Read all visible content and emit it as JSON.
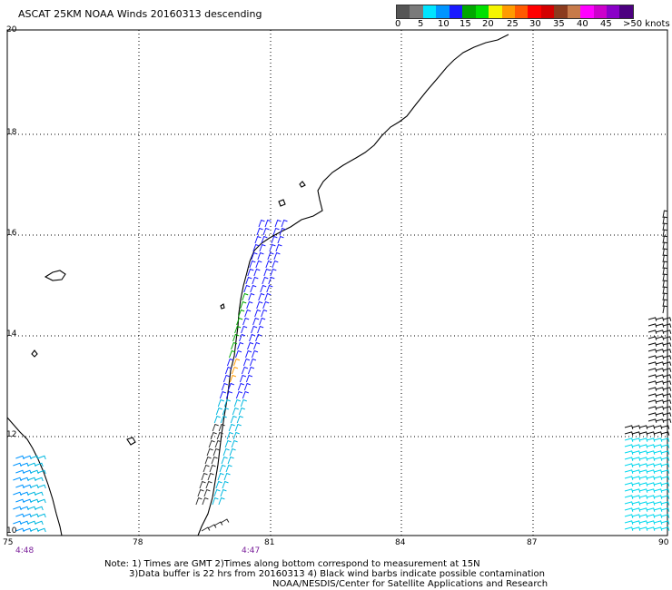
{
  "title": "ASCAT 25KM NOAA Winds 20160313 descending",
  "legend": {
    "labels": [
      "0",
      "5",
      "10",
      "15",
      "20",
      "25",
      "30",
      "35",
      "40",
      "45",
      ">50 knots"
    ],
    "colors": [
      "#555555",
      "#7a7a7a",
      "#00e5ff",
      "#0095ff",
      "#1a1aff",
      "#00a800",
      "#00e000",
      "#f4f400",
      "#ff9b00",
      "#ff5a00",
      "#ff0000",
      "#d40000",
      "#8b3b1e",
      "#c77a4a",
      "#ff00ff",
      "#cc00cc",
      "#8a00c8",
      "#4c0080"
    ]
  },
  "axes": {
    "lat_labels": [
      "20",
      "18",
      "16",
      "14",
      "12",
      "10"
    ],
    "lon_labels": [
      "75",
      "78",
      "81",
      "84",
      "87",
      "90"
    ]
  },
  "time_labels": [
    "4:48",
    "4:47"
  ],
  "notes": [
    "Note: 1) Times are GMT 2)Times along bottom correspond to measurement at 15N",
    "3)Data buffer is 22 hrs from 20160313 4) Black wind barbs indicate possible contamination",
    "NOAA/NESDIS/Center for Satellite Applications and Research"
  ],
  "colors": {
    "time_label": "#7a1f9a",
    "grid": "#000000",
    "coast": "#000000"
  }
}
